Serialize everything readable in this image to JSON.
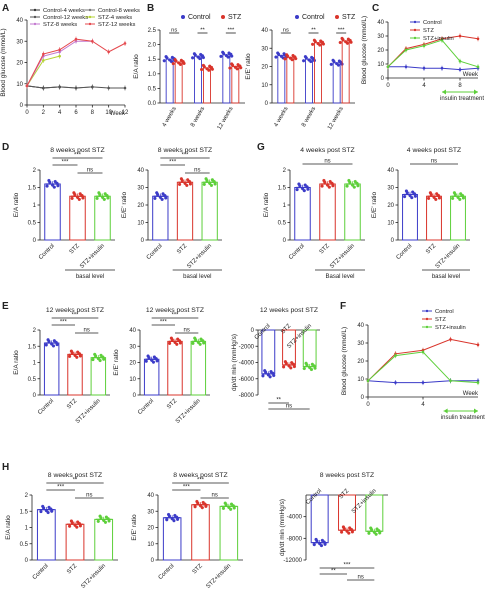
{
  "chart_data": [
    {
      "panel": "A",
      "type": "line",
      "xlabel": "Week",
      "ylabel": "Blood glucose (mmol/L)",
      "xlim": [
        0,
        12
      ],
      "ylim": [
        0,
        40
      ],
      "xticks": [
        0,
        2,
        4,
        6,
        8,
        10,
        12
      ],
      "yticks": [
        0,
        10,
        20,
        30,
        40
      ],
      "series": [
        {
          "name": "Control-4 weeks",
          "color": "#333333",
          "x": [
            0,
            2,
            4
          ],
          "y": [
            9,
            8,
            8.5
          ]
        },
        {
          "name": "Control-8 weeks",
          "color": "#777777",
          "x": [
            0,
            2,
            4,
            6,
            8
          ],
          "y": [
            9,
            8,
            8.5,
            8,
            8.5
          ]
        },
        {
          "name": "Control-12 weeks",
          "color": "#555555",
          "x": [
            0,
            2,
            4,
            6,
            8,
            10,
            12
          ],
          "y": [
            9,
            8,
            8.5,
            8,
            8.5,
            8,
            8
          ]
        },
        {
          "name": "STZ-4 weeks",
          "color": "#b5d334",
          "x": [
            0,
            2,
            4
          ],
          "y": [
            9,
            21,
            23
          ]
        },
        {
          "name": "STZ-8 weeks",
          "color": "#c37ad0",
          "x": [
            0,
            2,
            4,
            6,
            8
          ],
          "y": [
            9,
            23,
            25,
            30,
            30
          ]
        },
        {
          "name": "STZ-12 weeks",
          "color": "#e5484d",
          "x": [
            0,
            2,
            4,
            6,
            8,
            10,
            12
          ],
          "y": [
            9,
            24,
            26,
            31,
            30,
            25,
            29
          ]
        }
      ]
    },
    {
      "panel": "B",
      "type": "bar",
      "legend": [
        "Control",
        "STZ"
      ],
      "colors": [
        "#3b3bc8",
        "#d9342b"
      ],
      "subcharts": [
        {
          "ylabel": "E/A ratio",
          "ylim": [
            0,
            2.5
          ],
          "yticks": [
            0.0,
            0.5,
            1.0,
            1.5,
            2.0,
            2.5
          ],
          "categories": [
            "4 weeks",
            "8 weeks",
            "12 weeks"
          ],
          "control": [
            1.5,
            1.6,
            1.65
          ],
          "stz": [
            1.4,
            1.2,
            1.25
          ],
          "sig": [
            "ns",
            "**",
            "***"
          ]
        },
        {
          "ylabel": "E/E' ratio",
          "ylim": [
            0,
            40
          ],
          "yticks": [
            0,
            10,
            20,
            30,
            40
          ],
          "categories": [
            "4 weeks",
            "8 weeks",
            "12 weeks"
          ],
          "control": [
            26,
            24,
            22
          ],
          "stz": [
            25,
            33,
            34
          ],
          "sig": [
            "ns",
            "**",
            "***"
          ]
        }
      ]
    },
    {
      "panel": "C",
      "type": "line",
      "xlabel": "Week",
      "ylabel": "Blood glucose (mmol/L)",
      "xticks": [
        0,
        4,
        8
      ],
      "yticks": [
        0,
        10,
        20,
        30,
        40
      ],
      "annotation": "insulin treatment",
      "series": [
        {
          "name": "Control",
          "color": "#3b3bc8",
          "x": [
            0,
            2,
            4,
            6,
            8,
            10
          ],
          "y": [
            8,
            8,
            7,
            7,
            6,
            7
          ]
        },
        {
          "name": "STZ",
          "color": "#d9342b",
          "x": [
            0,
            2,
            4,
            6,
            8,
            10
          ],
          "y": [
            8,
            21,
            24,
            28,
            30,
            28
          ]
        },
        {
          "name": "STZ+insulin",
          "color": "#5dcf3a",
          "x": [
            0,
            2,
            4,
            6,
            8,
            10
          ],
          "y": [
            8,
            20,
            23,
            27,
            12,
            8
          ]
        }
      ]
    },
    {
      "panel": "D",
      "type": "bar",
      "subcharts": [
        {
          "title": "8 weeks post STZ",
          "ylabel": "E/A ratio",
          "ylim": [
            0,
            2.0
          ],
          "yticks": [
            0.0,
            0.5,
            1.0,
            1.5,
            2.0
          ],
          "categories": [
            "Control",
            "STZ",
            "STZ+insulin"
          ],
          "values": [
            1.6,
            1.25,
            1.25
          ],
          "sig": [
            "***",
            "***",
            "ns"
          ],
          "bracket_label": "basal level"
        },
        {
          "title": "8 weeks post STZ",
          "ylabel": "E/E' ratio",
          "ylim": [
            0,
            40
          ],
          "yticks": [
            0,
            10,
            20,
            30,
            40
          ],
          "categories": [
            "Control",
            "STZ",
            "STZ+insulin"
          ],
          "values": [
            25,
            33,
            33
          ],
          "sig": [
            "***",
            "***",
            "ns"
          ],
          "bracket_label": "basal level"
        }
      ]
    },
    {
      "panel": "G",
      "type": "bar",
      "subcharts": [
        {
          "title": "4 weeks post STZ",
          "ylabel": "E/A ratio",
          "ylim": [
            0,
            2.0
          ],
          "yticks": [
            0.0,
            0.5,
            1.0,
            1.5,
            2.0
          ],
          "categories": [
            "Control",
            "STZ",
            "STZ+insulin"
          ],
          "values": [
            1.5,
            1.6,
            1.6
          ],
          "sig": [
            "ns"
          ],
          "bracket_label": "Basal level"
        },
        {
          "title": "4 weeks post STZ",
          "ylabel": "E/E' ratio",
          "ylim": [
            0,
            40
          ],
          "yticks": [
            0,
            10,
            20,
            30,
            40
          ],
          "categories": [
            "Control",
            "STZ",
            "STZ+insulin"
          ],
          "values": [
            26,
            25,
            25
          ],
          "sig": [
            "ns"
          ],
          "bracket_label": "basal level"
        }
      ]
    },
    {
      "panel": "E",
      "type": "bar",
      "subcharts": [
        {
          "title": "12 weeks post STZ",
          "ylabel": "E/A ratio",
          "ylim": [
            0,
            2.0
          ],
          "yticks": [
            0.0,
            0.5,
            1.0,
            1.5,
            2.0
          ],
          "categories": [
            "Control",
            "STZ",
            "STZ+insulin"
          ],
          "values": [
            1.6,
            1.25,
            1.15
          ],
          "sig": [
            "***",
            "***",
            "ns"
          ]
        },
        {
          "title": "12 weeks post STZ",
          "ylabel": "E/E' ratio",
          "ylim": [
            0,
            40
          ],
          "yticks": [
            0,
            10,
            20,
            30,
            40
          ],
          "categories": [
            "Control",
            "STZ",
            "STZ+insulin"
          ],
          "values": [
            22,
            33,
            33
          ],
          "sig": [
            "***",
            "***",
            "ns"
          ]
        },
        {
          "title": "12 weeks post STZ",
          "ylabel": "dp/dt min (mmHg/s)",
          "ylim": [
            -8000,
            0
          ],
          "yticks": [
            0,
            -2000,
            -4000,
            -6000,
            -8000
          ],
          "categories": [
            "Control",
            "STZ",
            "STZ+insulin"
          ],
          "values": [
            -5400,
            -4300,
            -4500
          ],
          "sig": [
            "**",
            "ns"
          ]
        }
      ]
    },
    {
      "panel": "F",
      "type": "line",
      "xlabel": "Week",
      "ylabel": "Blood glucose (mmol/L)",
      "xticks": [
        0,
        4
      ],
      "yticks": [
        0,
        10,
        20,
        30,
        40
      ],
      "annotation": "insulin treatment",
      "series": [
        {
          "name": "Control",
          "color": "#3b3bc8",
          "x": [
            0,
            2,
            4,
            6,
            8
          ],
          "y": [
            9,
            8,
            8,
            9,
            9
          ]
        },
        {
          "name": "STZ",
          "color": "#d9342b",
          "x": [
            0,
            2,
            4,
            6,
            8
          ],
          "y": [
            9,
            24,
            26,
            32,
            29
          ]
        },
        {
          "name": "STZ+insulin",
          "color": "#5dcf3a",
          "x": [
            0,
            2,
            4,
            6,
            8
          ],
          "y": [
            9,
            23,
            25,
            9,
            8
          ]
        }
      ]
    },
    {
      "panel": "H",
      "type": "bar",
      "subcharts": [
        {
          "title": "8 weeks post STZ",
          "ylabel": "E/A ratio",
          "ylim": [
            0,
            2.0
          ],
          "yticks": [
            0.0,
            0.5,
            1.0,
            1.5,
            2.0
          ],
          "categories": [
            "Control",
            "STZ",
            "STZ+insulin"
          ],
          "values": [
            1.55,
            1.1,
            1.25
          ],
          "sig": [
            "**",
            "***",
            "ns"
          ]
        },
        {
          "title": "8 weeks post STZ",
          "ylabel": "E/E' ratio",
          "ylim": [
            0,
            40
          ],
          "yticks": [
            0,
            10,
            20,
            30,
            40
          ],
          "categories": [
            "Control",
            "STZ",
            "STZ+insulin"
          ],
          "values": [
            26,
            34,
            33
          ],
          "sig": [
            "***",
            "***",
            "ns"
          ]
        },
        {
          "title": "8 weeks post STZ",
          "ylabel": "dp/dt min (mmHg/s)",
          "ylim": [
            -12000,
            0
          ],
          "yticks": [
            -4000,
            -8000,
            -12000
          ],
          "categories": [
            "Control",
            "STZ",
            "STZ+insulin"
          ],
          "values": [
            -8800,
            -6500,
            -6700
          ],
          "sig": [
            "***",
            "**",
            "ns"
          ]
        }
      ]
    }
  ]
}
